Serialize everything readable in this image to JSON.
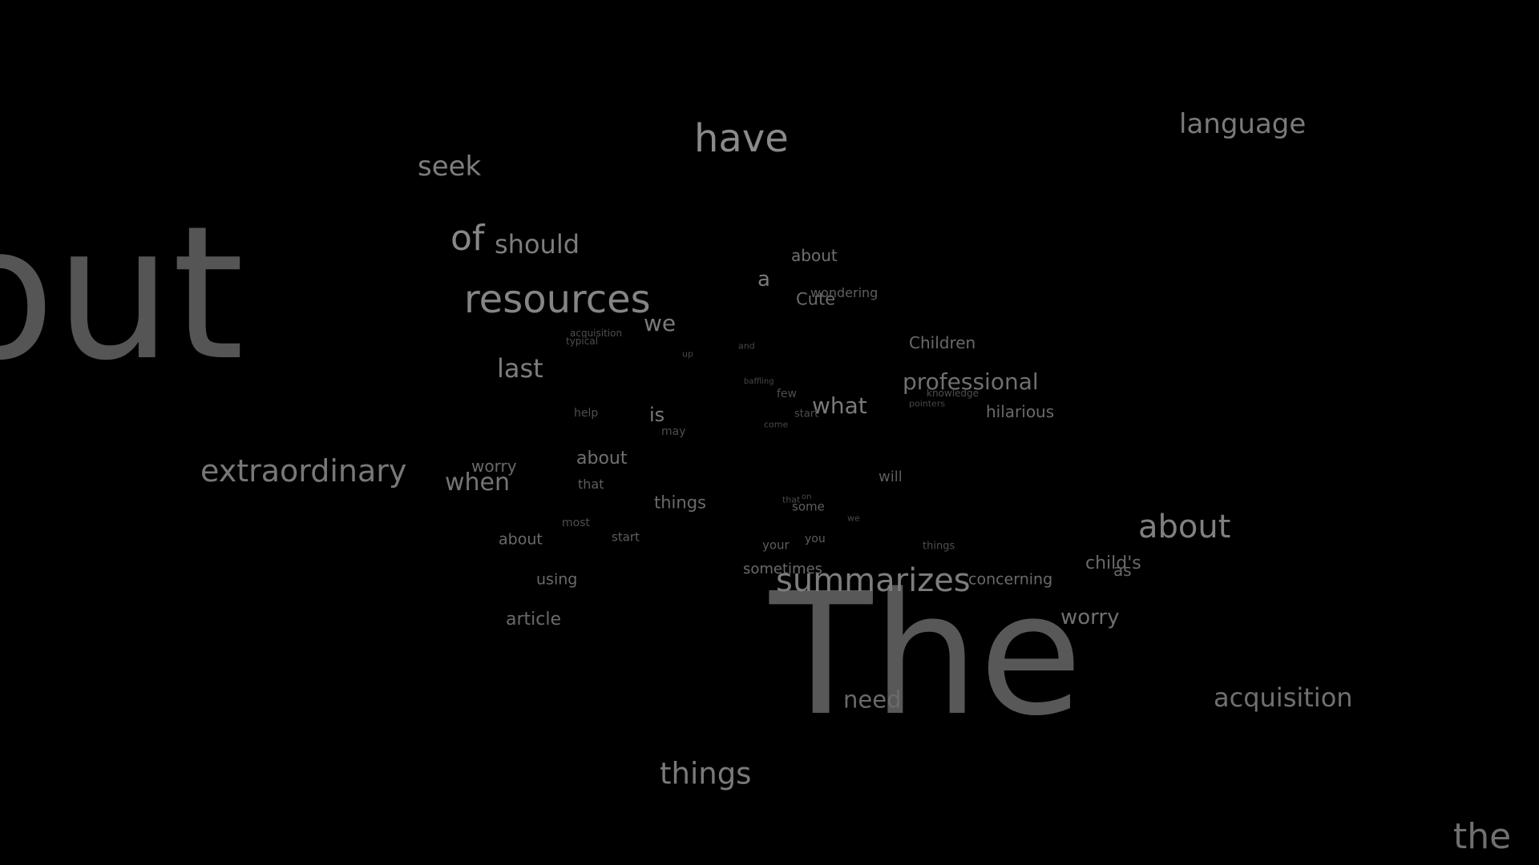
{
  "background": "#000000",
  "words": [
    {
      "text": "out",
      "color": "#555555"
    },
    {
      "text": "The",
      "color": "#585858"
    },
    {
      "text": "have",
      "color": "#8a8a8a"
    },
    {
      "text": "language",
      "color": "#7a7a7a"
    },
    {
      "text": "seek",
      "color": "#7d7d7d"
    },
    {
      "text": "of",
      "color": "#878787"
    },
    {
      "text": "should",
      "color": "#7d7d7d"
    },
    {
      "text": "resources",
      "color": "#858585"
    },
    {
      "text": "about",
      "color": "#707070"
    },
    {
      "text": "a",
      "color": "#7a7a7a"
    },
    {
      "text": "Cute",
      "color": "#6a6a6a"
    },
    {
      "text": "wondering",
      "color": "#5e5e5e"
    },
    {
      "text": "we",
      "color": "#7a7a7a"
    },
    {
      "text": "acquisition",
      "color": "#4e4e4e"
    },
    {
      "text": "typical",
      "color": "#4e4e4e"
    },
    {
      "text": "Children",
      "color": "#6a6a6a"
    },
    {
      "text": "last",
      "color": "#7d7d7d"
    },
    {
      "text": "up",
      "color": "#484848"
    },
    {
      "text": "and",
      "color": "#484848"
    },
    {
      "text": "professional",
      "color": "#707070"
    },
    {
      "text": "baffling",
      "color": "#484848"
    },
    {
      "text": "few",
      "color": "#4e4e4e"
    },
    {
      "text": "what",
      "color": "#7a7a7a"
    },
    {
      "text": "knowledge",
      "color": "#4e4e4e"
    },
    {
      "text": "pointers",
      "color": "#484848"
    },
    {
      "text": "hilarious",
      "color": "#6a6a6a"
    },
    {
      "text": "help",
      "color": "#4e4e4e"
    },
    {
      "text": "is",
      "color": "#7a7a7a"
    },
    {
      "text": "start",
      "color": "#4e4e4e"
    },
    {
      "text": "may",
      "color": "#4e4e4e"
    },
    {
      "text": "come",
      "color": "#484848"
    },
    {
      "text": "extraordinary",
      "color": "#787878"
    },
    {
      "text": "worry",
      "color": "#6a6a6a"
    },
    {
      "text": "about",
      "color": "#707070"
    },
    {
      "text": "when",
      "color": "#757575"
    },
    {
      "text": "that",
      "color": "#5e5e5e"
    },
    {
      "text": "will",
      "color": "#5e5e5e"
    },
    {
      "text": "things",
      "color": "#6a6a6a"
    },
    {
      "text": "that",
      "color": "#484848"
    },
    {
      "text": "on",
      "color": "#484848"
    },
    {
      "text": "some",
      "color": "#5e5e5e"
    },
    {
      "text": "we",
      "color": "#484848"
    },
    {
      "text": "about",
      "color": "#808080"
    },
    {
      "text": "most",
      "color": "#4e4e4e"
    },
    {
      "text": "about",
      "color": "#6a6a6a"
    },
    {
      "text": "start",
      "color": "#5e5e5e"
    },
    {
      "text": "your",
      "color": "#5e5e5e"
    },
    {
      "text": "you",
      "color": "#5e5e5e"
    },
    {
      "text": "things",
      "color": "#4e4e4e"
    },
    {
      "text": "child's",
      "color": "#6a6a6a"
    },
    {
      "text": "as",
      "color": "#6a6a6a"
    },
    {
      "text": "using",
      "color": "#6a6a6a"
    },
    {
      "text": "sometimes",
      "color": "#6a6a6a"
    },
    {
      "text": "summarizes",
      "color": "#7d7d7d"
    },
    {
      "text": "concerning",
      "color": "#6a6a6a"
    },
    {
      "text": "article",
      "color": "#6a6a6a"
    },
    {
      "text": "worry",
      "color": "#707070"
    },
    {
      "text": "need",
      "color": "#6a6a6a"
    },
    {
      "text": "acquisition",
      "color": "#707070"
    },
    {
      "text": "things",
      "color": "#7a7a7a"
    },
    {
      "text": "the",
      "color": "#707070"
    }
  ]
}
